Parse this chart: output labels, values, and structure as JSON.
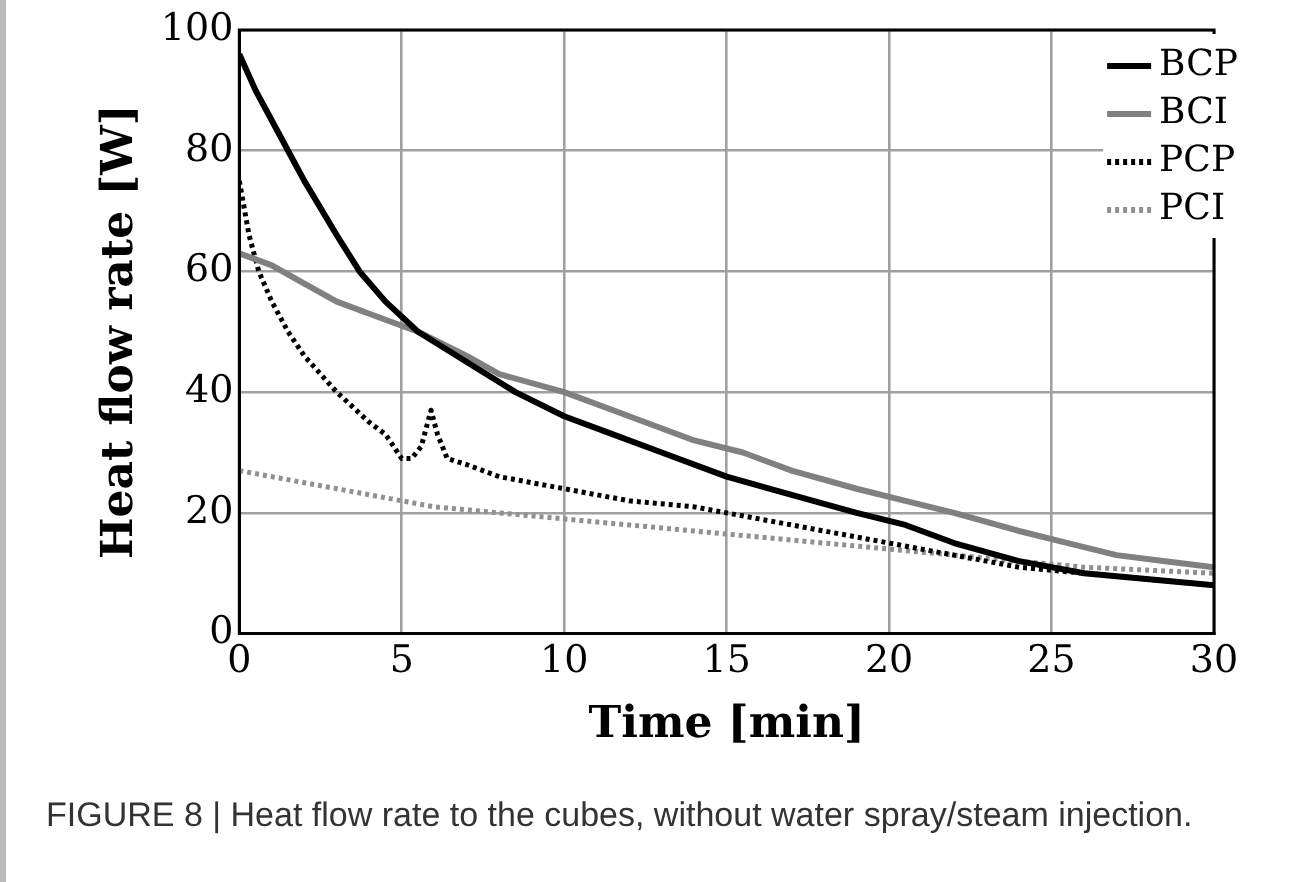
{
  "chart_data": {
    "type": "line",
    "xlabel": "Time [min]",
    "ylabel": "Heat flow rate [W]",
    "xlim": [
      0,
      30
    ],
    "xticks": [
      0,
      5,
      10,
      15,
      20,
      25,
      30
    ],
    "ylim": [
      0,
      100
    ],
    "yticks": [
      0,
      20,
      40,
      60,
      80,
      100
    ],
    "grid": true,
    "legend": "top right",
    "marker": "none",
    "annotations": [
      "FIGURE 8 | Heat flow rate to the cubes, without water spray/steam injection."
    ],
    "series": [
      {
        "name": "BCP",
        "color": "#000000",
        "line_style": "solid",
        "x": [
          0,
          0.5,
          1,
          1.5,
          2,
          3,
          3.7,
          4.5,
          5.5,
          7,
          8.5,
          10,
          11.5,
          13,
          15,
          17,
          19,
          20.5,
          22,
          24,
          26,
          28,
          30
        ],
        "values": [
          96,
          90,
          85,
          80,
          75,
          66,
          60,
          55,
          50,
          45,
          40,
          36,
          33,
          30,
          26,
          23,
          20,
          18,
          15,
          12,
          10,
          9,
          8
        ]
      },
      {
        "name": "BCI",
        "color": "#808080",
        "line_style": "solid",
        "x": [
          0,
          1,
          2,
          3,
          4,
          5.5,
          7,
          8,
          10,
          12,
          14,
          15.5,
          17,
          19,
          20.5,
          22,
          24,
          25.5,
          27,
          28.5,
          30
        ],
        "values": [
          63,
          61,
          58,
          55,
          53,
          50,
          46,
          43,
          40,
          36,
          32,
          30,
          27,
          24,
          22,
          20,
          17,
          15,
          13,
          12,
          11
        ]
      },
      {
        "name": "PCP",
        "color": "#000000",
        "line_style": "dotted",
        "x": [
          0,
          0.3,
          0.6,
          1,
          1.5,
          2,
          3,
          4,
          4.5,
          5,
          5.3,
          5.6,
          5.9,
          6.1,
          6.4,
          7,
          8,
          10,
          12,
          14,
          16,
          18,
          20,
          22,
          24,
          26,
          28,
          30
        ],
        "values": [
          75,
          66,
          60,
          55,
          50,
          46,
          40,
          35,
          33,
          29,
          29,
          31,
          37,
          33,
          29,
          28,
          26,
          24,
          22,
          21,
          19,
          17,
          15,
          13,
          11,
          10,
          9,
          8
        ]
      },
      {
        "name": "PCI",
        "color": "#909090",
        "line_style": "dotted",
        "x": [
          0,
          1,
          2,
          3,
          4,
          5,
          6,
          8,
          10,
          12,
          14,
          16,
          18,
          20,
          22,
          24,
          26,
          28,
          30
        ],
        "values": [
          27,
          26,
          25,
          24,
          23,
          22,
          21,
          20,
          19,
          18,
          17,
          16,
          15,
          14,
          13,
          12,
          11,
          10.5,
          10
        ]
      }
    ]
  }
}
